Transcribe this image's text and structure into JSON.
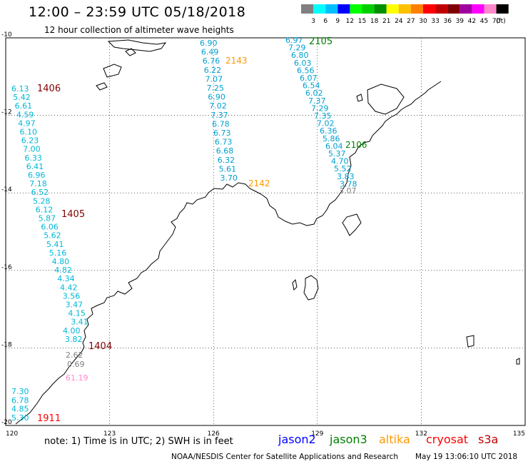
{
  "header": {
    "title": "12:00 – 23:59 UTC 05/18/2018",
    "subtitle": "12 hour collection of altimeter wave heights"
  },
  "colorbar": {
    "unit": "(ft)",
    "colors": [
      "#808080",
      "#00ffff",
      "#00bfff",
      "#0000ff",
      "#00ff00",
      "#00d000",
      "#009000",
      "#ffff00",
      "#ffc000",
      "#ff8000",
      "#ff0000",
      "#c00000",
      "#800000",
      "#a000a0",
      "#ff00ff",
      "#ff88cc",
      "#000000"
    ],
    "labels": [
      "3",
      "6",
      "9",
      "12",
      "15",
      "18",
      "21",
      "24",
      "27",
      "30",
      "33",
      "36",
      "39",
      "42",
      "45",
      "70"
    ]
  },
  "map": {
    "lon_ticks": [
      "120",
      "123",
      "126",
      "129",
      "132",
      "135"
    ],
    "lat_ticks": [
      "-10",
      "-12",
      "-14",
      "-16",
      "-18",
      "-20"
    ],
    "lon_range": [
      120,
      135
    ],
    "lat_range": [
      -20,
      -10
    ],
    "grid_style": "dotted"
  },
  "tracks": [
    {
      "id": "t2143",
      "color": "#00a0d0",
      "values": [
        "6.90",
        "6.49",
        "6.76",
        "6.22",
        "7.07",
        "7.25",
        "6.90",
        "7.02",
        "7.37",
        "6.78",
        "6.73",
        "6.73",
        "6.68",
        "6.32",
        "5.61",
        "3.70"
      ],
      "time": "2143",
      "time_color": "#ff9900",
      "time2": "2142",
      "time2_color": "#ff9900"
    },
    {
      "id": "t2105",
      "color": "#00a0d0",
      "values": [
        "6.97",
        "7.29",
        "6.80",
        "6.03",
        "6.56",
        "6.07",
        "6.54",
        "6.02",
        "7.37",
        "7.29",
        "7.35",
        "7.02",
        "6.36",
        "5.86",
        "6.04",
        "5.37",
        "4.70",
        "5.52",
        "3.83",
        "3.78"
      ],
      "extra": "3.07",
      "extra_color": "#808080",
      "time": "2105",
      "time_color": "#008000",
      "time2": "2106",
      "time2_color": "#008000"
    },
    {
      "id": "t1405",
      "color": "#00b8d8",
      "values": [
        "6.13",
        "5.42",
        "6.61",
        "4.59",
        "4.97",
        "6.10",
        "6.23",
        "7.00",
        "6.33",
        "6.41",
        "6.96",
        "7.18",
        "6.52",
        "5.28",
        "6.12",
        "5.87",
        "6.06",
        "5.62",
        "5.41",
        "5.16",
        "4.80",
        "4.82",
        "4.34",
        "4.42",
        "3.56",
        "3.47",
        "4.15",
        "3.41",
        "4.00",
        "3.82"
      ],
      "extra": [
        "2.62",
        "0.69"
      ],
      "extra_color": "#808080",
      "extra2": "61.19",
      "extra2_color": "#ff88cc",
      "time": "1406",
      "time_color": "#800000",
      "time2": "1405",
      "time2_color": "#800000",
      "time3": "1404",
      "time3_color": "#800000"
    },
    {
      "id": "t1911",
      "color": "#00b8d8",
      "values": [
        "7.30",
        "6.78",
        "4.85",
        "5.30"
      ],
      "time": "1911",
      "time_color": "#ff0000"
    }
  ],
  "footer": {
    "note": "note: 1) Time is in UTC; 2) SWH is in feet",
    "satellites": [
      {
        "name": "jason2",
        "color": "#0000ff"
      },
      {
        "name": "jason3",
        "color": "#008000"
      },
      {
        "name": "altika",
        "color": "#ff9900"
      },
      {
        "name": "cryosat",
        "color": "#ff0000"
      },
      {
        "name": "s3a",
        "color": "#c00000"
      }
    ],
    "credit": "NOAA/NESDIS Center for Satellite Applications and Research",
    "timestamp": "May 19 13:06:10 UTC 2018"
  }
}
